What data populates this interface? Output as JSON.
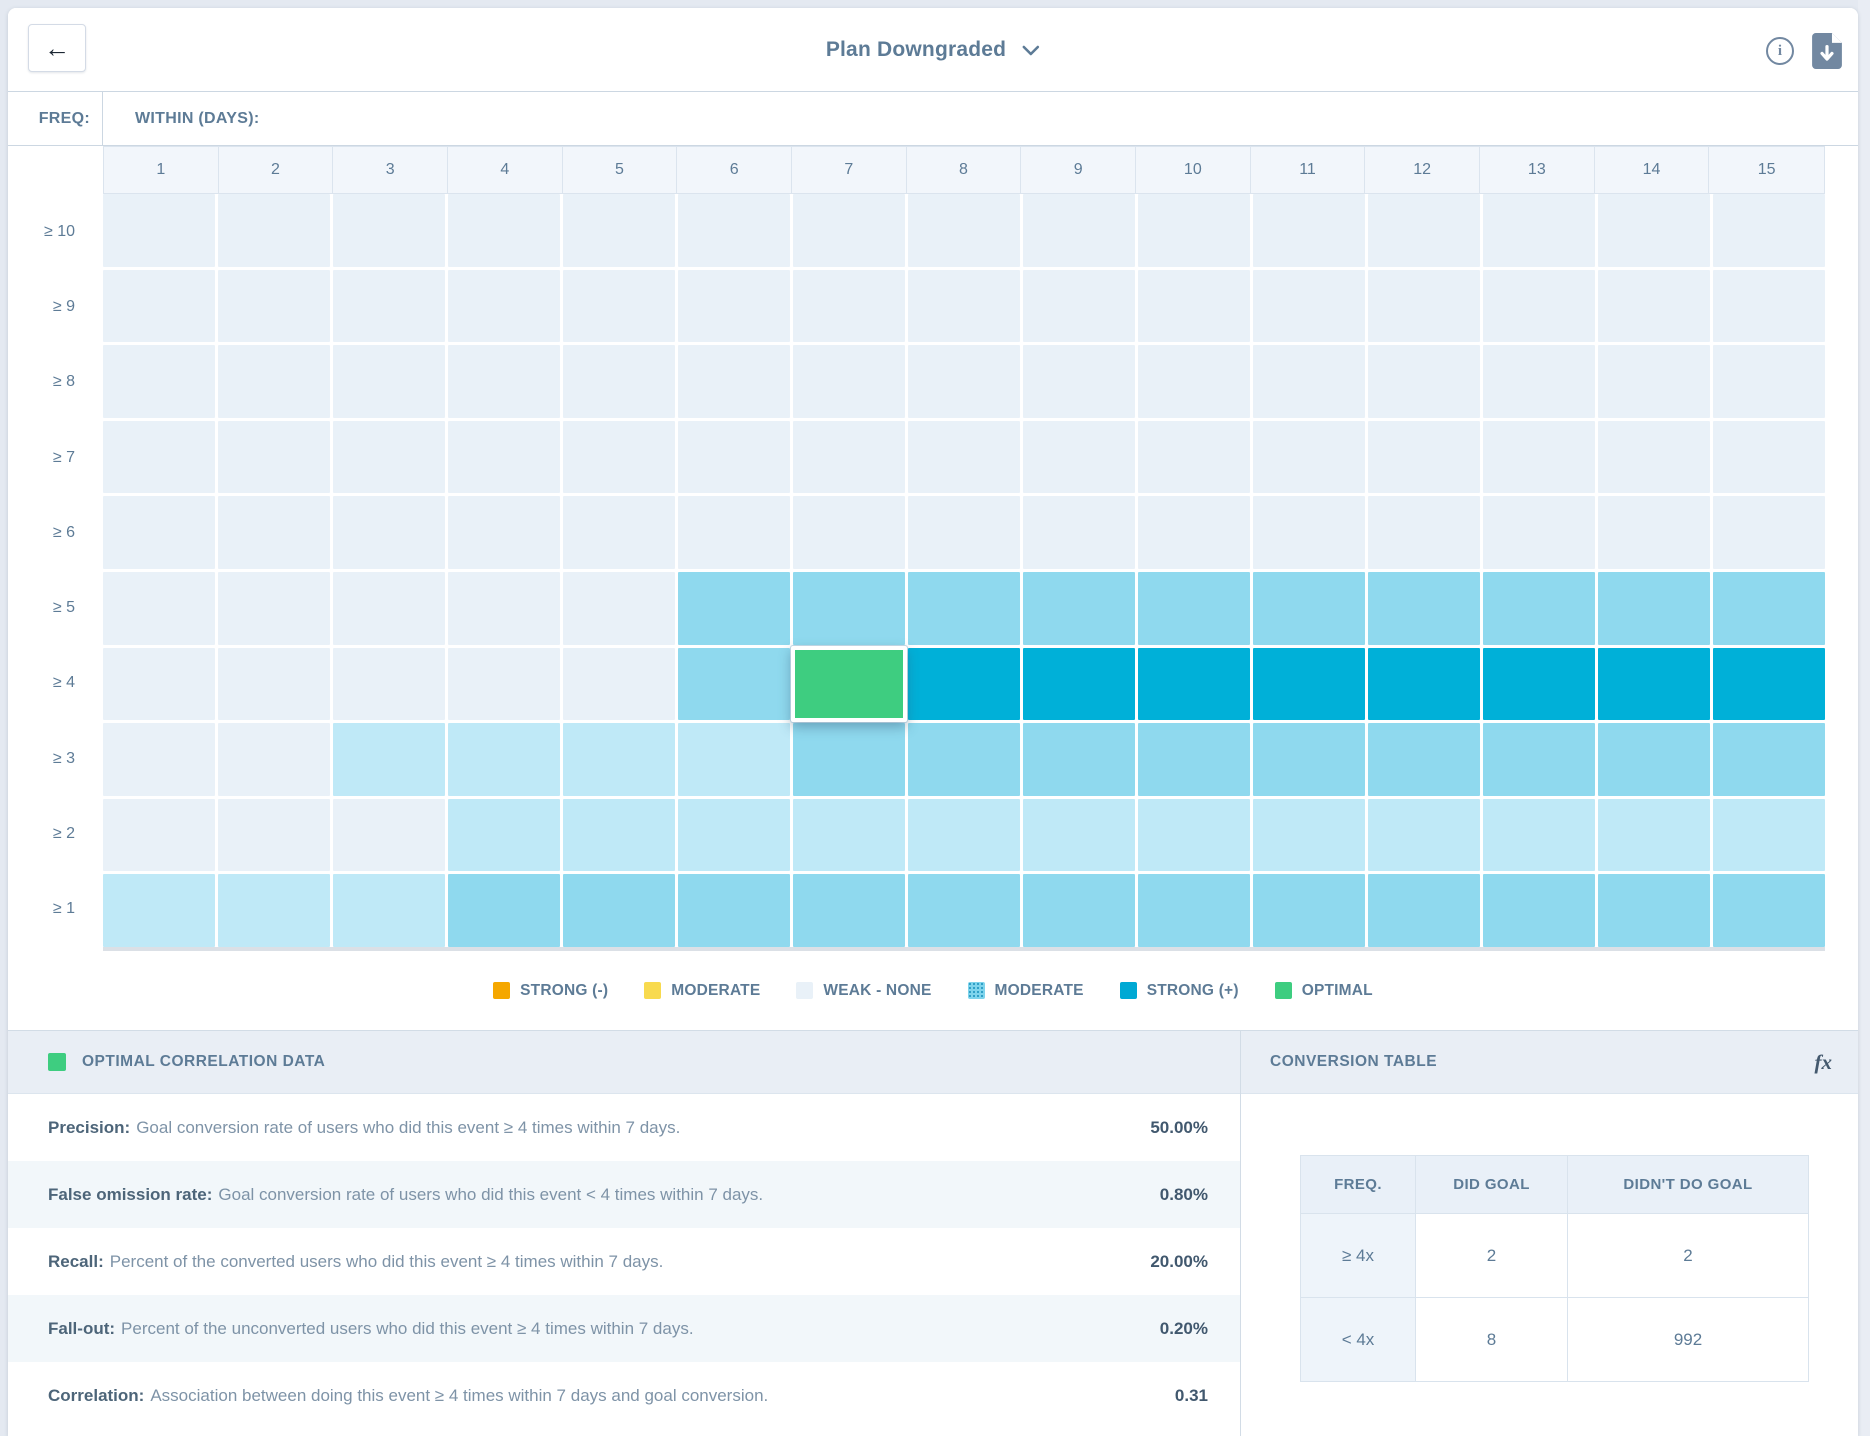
{
  "header": {
    "title": "Plan Downgraded",
    "back_icon": "←",
    "info_icon": "i"
  },
  "grid": {
    "freq_label": "FREQ:",
    "within_label": "WITHIN (DAYS):"
  },
  "chart_data": {
    "type": "heatmap",
    "title": "Plan Downgraded",
    "xlabel": "WITHIN (DAYS):",
    "ylabel": "FREQ:",
    "x": [
      "1",
      "2",
      "3",
      "4",
      "5",
      "6",
      "7",
      "8",
      "9",
      "10",
      "11",
      "12",
      "13",
      "14",
      "15"
    ],
    "y": [
      "≥ 10",
      "≥ 9",
      "≥ 8",
      "≥ 7",
      "≥ 6",
      "≥ 5",
      "≥ 4",
      "≥ 3",
      "≥ 2",
      "≥ 1"
    ],
    "levels": {
      "w": "weak-none",
      "l": "weak-moderate",
      "m": "moderate-positive",
      "s": "strong-positive",
      "o": "optimal"
    },
    "level_colors": {
      "w": "#e9f1f8",
      "l": "#bfe9f7",
      "m": "#8fd9ee",
      "s": "#00b0d8",
      "o": "#3ecd80"
    },
    "matrix": [
      [
        "w",
        "w",
        "w",
        "w",
        "w",
        "w",
        "w",
        "w",
        "w",
        "w",
        "w",
        "w",
        "w",
        "w",
        "w"
      ],
      [
        "w",
        "w",
        "w",
        "w",
        "w",
        "w",
        "w",
        "w",
        "w",
        "w",
        "w",
        "w",
        "w",
        "w",
        "w"
      ],
      [
        "w",
        "w",
        "w",
        "w",
        "w",
        "w",
        "w",
        "w",
        "w",
        "w",
        "w",
        "w",
        "w",
        "w",
        "w"
      ],
      [
        "w",
        "w",
        "w",
        "w",
        "w",
        "w",
        "w",
        "w",
        "w",
        "w",
        "w",
        "w",
        "w",
        "w",
        "w"
      ],
      [
        "w",
        "w",
        "w",
        "w",
        "w",
        "w",
        "w",
        "w",
        "w",
        "w",
        "w",
        "w",
        "w",
        "w",
        "w"
      ],
      [
        "w",
        "w",
        "w",
        "w",
        "w",
        "m",
        "m",
        "m",
        "m",
        "m",
        "m",
        "m",
        "m",
        "m",
        "m"
      ],
      [
        "w",
        "w",
        "w",
        "w",
        "w",
        "m",
        "o",
        "s",
        "s",
        "s",
        "s",
        "s",
        "s",
        "s",
        "s"
      ],
      [
        "w",
        "w",
        "l",
        "l",
        "l",
        "l",
        "m",
        "m",
        "m",
        "m",
        "m",
        "m",
        "m",
        "m",
        "m"
      ],
      [
        "w",
        "w",
        "w",
        "l",
        "l",
        "l",
        "l",
        "l",
        "l",
        "l",
        "l",
        "l",
        "l",
        "l",
        "l"
      ],
      [
        "l",
        "l",
        "l",
        "m",
        "m",
        "m",
        "m",
        "m",
        "m",
        "m",
        "m",
        "m",
        "m",
        "m",
        "m"
      ]
    ],
    "selected_index": {
      "row": 6,
      "col": 6
    },
    "selected_cell": {
      "freq": "≥ 4",
      "within_days": "7",
      "level": "optimal"
    },
    "legend_position": "bottom"
  },
  "legend": {
    "items": [
      {
        "label": "STRONG (-)",
        "color": "#f5a700",
        "pattern": false
      },
      {
        "label": "MODERATE",
        "color": "#f8da4e",
        "pattern": false
      },
      {
        "label": "WEAK - NONE",
        "color": "#e9f1f8",
        "pattern": false
      },
      {
        "label": "MODERATE",
        "color": "#7fd4ec",
        "pattern": true
      },
      {
        "label": "STRONG (+)",
        "color": "#00a9d4",
        "pattern": false
      },
      {
        "label": "OPTIMAL",
        "color": "#3ecd80",
        "pattern": false
      }
    ]
  },
  "optimal_panel": {
    "title": "OPTIMAL CORRELATION DATA",
    "swatch_color": "#3ecd80",
    "metrics": [
      {
        "name": "Precision:",
        "description": "Goal conversion rate of users who did this event ≥ 4 times within 7 days.",
        "value": "50.00%"
      },
      {
        "name": "False omission rate:",
        "description": "Goal conversion rate of users who did this event < 4 times within 7 days.",
        "value": "0.80%"
      },
      {
        "name": "Recall:",
        "description": "Percent of the converted users who did this event ≥ 4 times within 7 days.",
        "value": "20.00%"
      },
      {
        "name": "Fall-out:",
        "description": "Percent of the unconverted users who did this event ≥ 4 times within 7 days.",
        "value": "0.20%"
      },
      {
        "name": "Correlation:",
        "description": "Association between doing this event ≥ 4 times within 7 days and goal conversion.",
        "value": "0.31"
      }
    ]
  },
  "conversion_panel": {
    "title": "CONVERSION TABLE",
    "fx_icon": "fx",
    "table": {
      "headers": [
        "FREQ.",
        "DID GOAL",
        "DIDN'T DO GOAL"
      ],
      "rows": [
        {
          "freq": "≥ 4x",
          "did_goal": "2",
          "didnt_do_goal": "2"
        },
        {
          "freq": "< 4x",
          "did_goal": "8",
          "didnt_do_goal": "992"
        }
      ]
    }
  }
}
